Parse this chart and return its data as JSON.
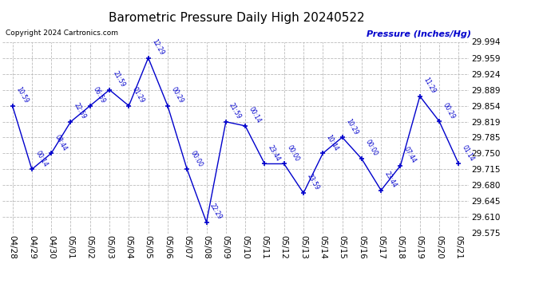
{
  "title": "Barometric Pressure Daily High 20240522",
  "ylabel": "Pressure (Inches/Hg)",
  "copyright": "Copyright 2024 Cartronics.com",
  "line_color": "#0000cc",
  "bg_color": "#ffffff",
  "grid_color": "#bbbbbb",
  "ylim": [
    29.575,
    29.994
  ],
  "yticks": [
    29.575,
    29.61,
    29.645,
    29.68,
    29.715,
    29.75,
    29.785,
    29.819,
    29.854,
    29.889,
    29.924,
    29.959,
    29.994
  ],
  "dates": [
    "04/28",
    "04/29",
    "04/30",
    "05/01",
    "05/02",
    "05/03",
    "05/04",
    "05/05",
    "05/06",
    "05/07",
    "05/08",
    "05/09",
    "05/10",
    "05/11",
    "05/12",
    "05/13",
    "05/14",
    "05/15",
    "05/16",
    "05/17",
    "05/18",
    "05/19",
    "05/20",
    "05/21"
  ],
  "values": [
    29.854,
    29.715,
    29.75,
    29.819,
    29.854,
    29.889,
    29.854,
    29.959,
    29.854,
    29.715,
    29.599,
    29.819,
    29.81,
    29.727,
    29.727,
    29.663,
    29.75,
    29.785,
    29.738,
    29.669,
    29.723,
    29.875,
    29.82,
    29.727
  ],
  "labels": [
    "10:59",
    "00:14",
    "08:44",
    "22:59",
    "06:59",
    "21:59",
    "01:29",
    "12:29",
    "00:29",
    "00:00",
    "22:29",
    "21:59",
    "00:14",
    "23:44",
    "00:00",
    "23:59",
    "10:44",
    "10:29",
    "00:00",
    "23:44",
    "07:44",
    "11:29",
    "00:29",
    "01:14"
  ]
}
